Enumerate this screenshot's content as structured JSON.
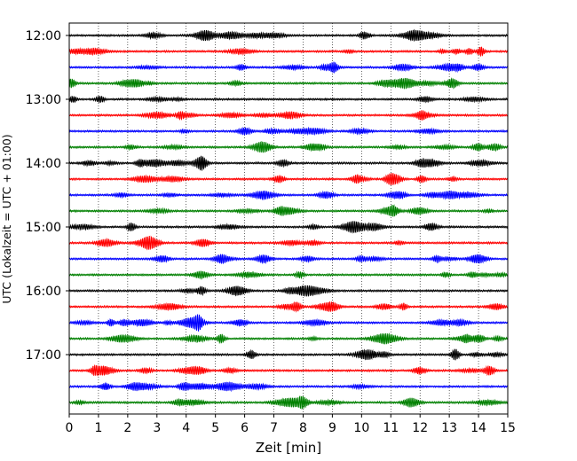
{
  "chart_data": {
    "type": "line",
    "title": "",
    "xlabel": "Zeit  [min]",
    "ylabel": "UTC (Lokalzeit = UTC + 01:00)",
    "xlim": [
      0,
      15
    ],
    "x_ticks": [
      0,
      1,
      2,
      3,
      4,
      5,
      6,
      7,
      8,
      9,
      10,
      11,
      12,
      13,
      14,
      15
    ],
    "x_tick_labels": [
      "0",
      "1",
      "2",
      "3",
      "4",
      "5",
      "6",
      "7",
      "8",
      "9",
      "10",
      "11",
      "12",
      "13",
      "14",
      "15"
    ],
    "y_tick_labels": [
      "12:00",
      "13:00",
      "14:00",
      "15:00",
      "16:00",
      "17:00"
    ],
    "grid": "vertical-dotted",
    "line_colors": [
      "#000000",
      "#ff0000",
      "#0000ff",
      "#008000"
    ],
    "traces": [
      {
        "start": "12:00",
        "color": "#000000"
      },
      {
        "start": "12:15",
        "color": "#ff0000"
      },
      {
        "start": "12:30",
        "color": "#0000ff"
      },
      {
        "start": "12:45",
        "color": "#008000"
      },
      {
        "start": "13:00",
        "color": "#000000"
      },
      {
        "start": "13:15",
        "color": "#ff0000"
      },
      {
        "start": "13:30",
        "color": "#0000ff"
      },
      {
        "start": "13:45",
        "color": "#008000"
      },
      {
        "start": "14:00",
        "color": "#000000"
      },
      {
        "start": "14:15",
        "color": "#ff0000"
      },
      {
        "start": "14:30",
        "color": "#0000ff"
      },
      {
        "start": "14:45",
        "color": "#008000"
      },
      {
        "start": "15:00",
        "color": "#000000"
      },
      {
        "start": "15:15",
        "color": "#ff0000"
      },
      {
        "start": "15:30",
        "color": "#0000ff"
      },
      {
        "start": "15:45",
        "color": "#008000"
      },
      {
        "start": "16:00",
        "color": "#000000"
      },
      {
        "start": "16:15",
        "color": "#ff0000"
      },
      {
        "start": "16:30",
        "color": "#0000ff"
      },
      {
        "start": "16:45",
        "color": "#008000"
      },
      {
        "start": "17:00",
        "color": "#000000"
      },
      {
        "start": "17:15",
        "color": "#ff0000"
      },
      {
        "start": "17:30",
        "color": "#0000ff"
      },
      {
        "start": "17:45",
        "color": "#008000"
      }
    ]
  }
}
